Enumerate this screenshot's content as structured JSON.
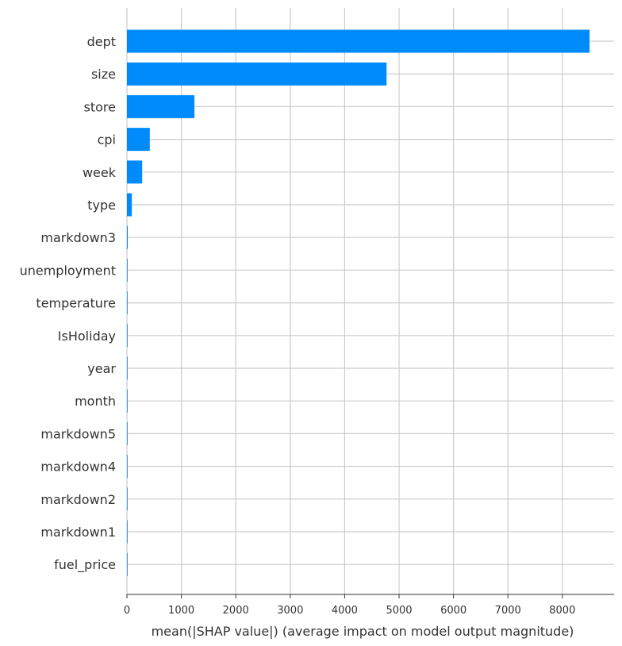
{
  "chart_data": {
    "type": "bar",
    "orientation": "horizontal",
    "categories": [
      "dept",
      "size",
      "store",
      "cpi",
      "week",
      "type",
      "markdown3",
      "unemployment",
      "temperature",
      "IsHoliday",
      "year",
      "month",
      "markdown5",
      "markdown4",
      "markdown2",
      "markdown1",
      "fuel_price"
    ],
    "values": [
      8500,
      4770,
      1240,
      420,
      280,
      90,
      15,
      12,
      5,
      4,
      3,
      3,
      2,
      2,
      2,
      1,
      1
    ],
    "xlabel": "mean(|SHAP value|) (average impact on model output magnitude)",
    "ylabel": "",
    "xlim": [
      0,
      8950
    ],
    "xticks": [
      0,
      1000,
      2000,
      3000,
      4000,
      5000,
      6000,
      7000,
      8000
    ],
    "grid": true,
    "legend": "none",
    "colors": {
      "bar": "#008bfb",
      "grid": "#cccccc",
      "text": "#333333"
    }
  }
}
